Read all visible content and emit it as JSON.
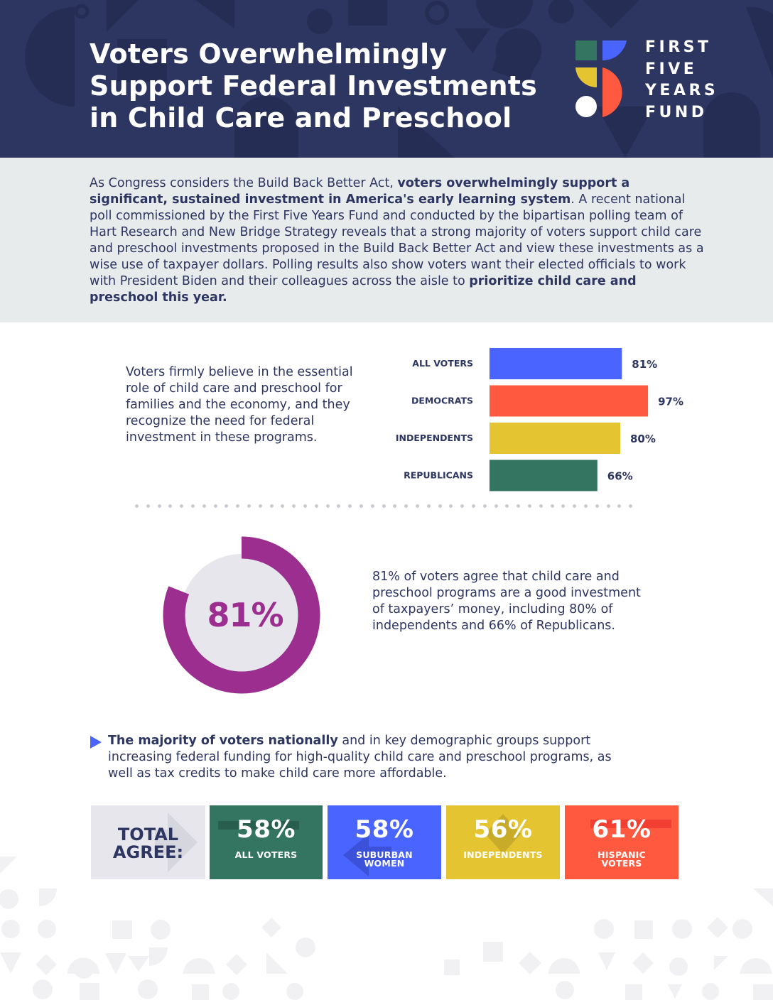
{
  "header": {
    "title_lines": [
      "Voters Overwhelmingly",
      "Support Federal Investments",
      "in Child Care and Preschool"
    ],
    "logo_lines": [
      "FIRST",
      "FIVE",
      "YEARS",
      "FUND"
    ]
  },
  "intro": {
    "seg1": "As Congress considers the Build Back Better Act, ",
    "seg2_bold": "voters overwhelmingly support a significant, sustained investment in America's early learning system",
    "seg3": ". A recent national poll commissioned by the First Five Years Fund and conducted by the bipartisan polling team of Hart Research and New Bridge Strategy reveals that a strong majority of voters support child care and preschool investments proposed in the Build Back Better Act and view these investments as a wise use of taxpayer dollars. Polling results also show voters want their elected officials to work with President Biden and their colleagues across the aisle to ",
    "seg4_bold": "prioritize child care and preschool this year."
  },
  "voters_text": "Voters firmly believe in the essential role of child care and preschool for families and the economy, and they recognize the need for federal investment in these programs.",
  "chart_data": {
    "type": "bar",
    "orientation": "horizontal",
    "categories": [
      "ALL VOTERS",
      "DEMOCRATS",
      "INDEPENDENTS",
      "REPUBLICANS"
    ],
    "values": [
      81,
      97,
      80,
      66
    ],
    "value_labels": [
      "81%",
      "97%",
      "80%",
      "66%"
    ],
    "colors": [
      "#4a64ff",
      "#ff5a3f",
      "#e4c531",
      "#337561"
    ],
    "xlim": [
      0,
      100
    ]
  },
  "donut": {
    "value": 81,
    "label": "81%",
    "ring_color": "#9b2e8e",
    "center_color": "#e6e6ec",
    "text": "81% of voters agree that child care and preschool programs are a good investment of taxpayers’ money, including 80% of independents and 66% of Republicans."
  },
  "majority": {
    "bold": "The majority of voters nationally",
    "rest": " and in key demographic groups support increasing federal funding for high-quality child care and preschool programs, as well as tax credits to make child care more affordable."
  },
  "tiles": {
    "total_lines": [
      "TOTAL",
      "AGREE:"
    ],
    "items": [
      {
        "pct": "58%",
        "lines": [
          "ALL VOTERS"
        ],
        "color": "#337561"
      },
      {
        "pct": "58%",
        "lines": [
          "SUBURBAN",
          "WOMEN"
        ],
        "color": "#4a64ff"
      },
      {
        "pct": "56%",
        "lines": [
          "INDEPENDENTS"
        ],
        "color": "#e4c531"
      },
      {
        "pct": "61%",
        "lines": [
          "HISPANIC",
          "VOTERS"
        ],
        "color": "#ff5a3f"
      }
    ]
  }
}
